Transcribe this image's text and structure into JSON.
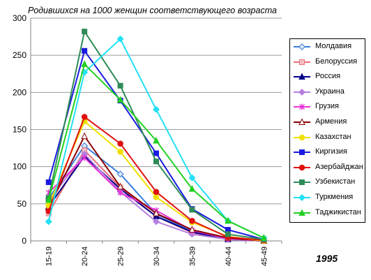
{
  "chart_data": {
    "type": "line",
    "title": "Родившихся на 1000 женщин соответствующего возраста",
    "annotation": "1995",
    "xlabel": "",
    "ylabel": "",
    "categories": [
      "15-19",
      "20-24",
      "25-29",
      "30-34",
      "35-39",
      "40-44",
      "45-49"
    ],
    "ylim": [
      0,
      300
    ],
    "yticks": [
      0,
      50,
      100,
      150,
      200,
      250,
      300
    ],
    "grid": "horizontal",
    "legend_position": "right",
    "series": [
      {
        "name": "Молдавия",
        "color": "#3a7ddc",
        "marker": "diamond",
        "values": [
          57,
          128,
          90,
          36,
          13,
          3,
          0
        ]
      },
      {
        "name": "Белоруссия",
        "color": "#e8707a",
        "marker": "square",
        "values": [
          37,
          122,
          72,
          33,
          11,
          2,
          0
        ]
      },
      {
        "name": "Россия",
        "color": "#00008b",
        "marker": "triangle",
        "values": [
          46,
          114,
          70,
          33,
          12,
          2,
          0
        ]
      },
      {
        "name": "Украина",
        "color": "#b57fe0",
        "marker": "diamond",
        "values": [
          54,
          117,
          66,
          26,
          9,
          2,
          0
        ]
      },
      {
        "name": "Грузия",
        "color": "#e832d8",
        "marker": "star",
        "values": [
          65,
          112,
          65,
          41,
          14,
          3,
          0
        ]
      },
      {
        "name": "Армения",
        "color": "#8b0000",
        "marker": "triangle",
        "values": [
          45,
          141,
          73,
          37,
          15,
          4,
          0
        ]
      },
      {
        "name": "Казахстан",
        "color": "#f0e000",
        "marker": "circle",
        "values": [
          48,
          161,
          120,
          59,
          25,
          6,
          0
        ]
      },
      {
        "name": "Киргизия",
        "color": "#1a1ae0",
        "marker": "square",
        "values": [
          79,
          256,
          189,
          118,
          43,
          15,
          2
        ]
      },
      {
        "name": "Азербайджан",
        "color": "#e01010",
        "marker": "circle",
        "values": [
          40,
          167,
          131,
          66,
          27,
          5,
          1
        ]
      },
      {
        "name": "Узбекистан",
        "color": "#2e8b57",
        "marker": "square",
        "values": [
          58,
          282,
          209,
          107,
          42,
          9,
          2
        ]
      },
      {
        "name": "Туркмения",
        "color": "#22e0f5",
        "marker": "diamond",
        "values": [
          26,
          227,
          272,
          177,
          85,
          27,
          4
        ]
      },
      {
        "name": "Таджикистан",
        "color": "#22d022",
        "marker": "triangle",
        "values": [
          55,
          238,
          190,
          135,
          70,
          27,
          4
        ]
      }
    ]
  }
}
